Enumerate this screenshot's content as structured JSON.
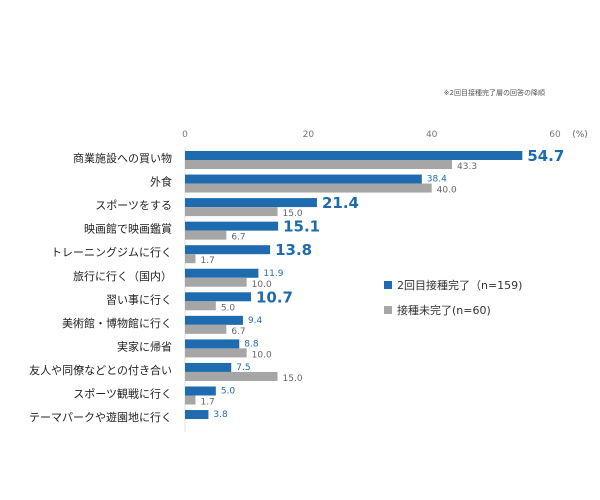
{
  "chart_data": {
    "type": "bar",
    "orientation": "horizontal",
    "note": "※2回目接種完了層の回答の降順",
    "unit": "(%)",
    "xlim": [
      0,
      60
    ],
    "ticks": [
      "0",
      "20",
      "40",
      "60"
    ],
    "categories": [
      "商業施設への買い物",
      "外食",
      "スポーツをする",
      "映画館で映画鑑賞",
      "トレーニングジムに行く",
      "旅行に行く（国内）",
      "習い事に行く",
      "美術館・博物館に行く",
      "実家に帰省",
      "友人や同僚などとの付き合い",
      "スポーツ観戦に行く",
      "テーマパークや遊園地に行く"
    ],
    "series": [
      {
        "name": "2回目接種完了（n=159)",
        "color": "#1f6bb0",
        "values": [
          54.7,
          38.4,
          21.4,
          15.1,
          13.8,
          11.9,
          10.7,
          9.4,
          8.8,
          7.5,
          5.0,
          3.8
        ],
        "emphasized": [
          true,
          false,
          true,
          true,
          true,
          false,
          true,
          false,
          false,
          false,
          false,
          false
        ]
      },
      {
        "name": "接種未完了(n=60)",
        "color": "#a6a6a6",
        "values": [
          43.3,
          40.0,
          15.0,
          6.7,
          1.7,
          10.0,
          5.0,
          6.7,
          10.0,
          15.0,
          1.7,
          null
        ]
      }
    ],
    "legend": "right"
  }
}
